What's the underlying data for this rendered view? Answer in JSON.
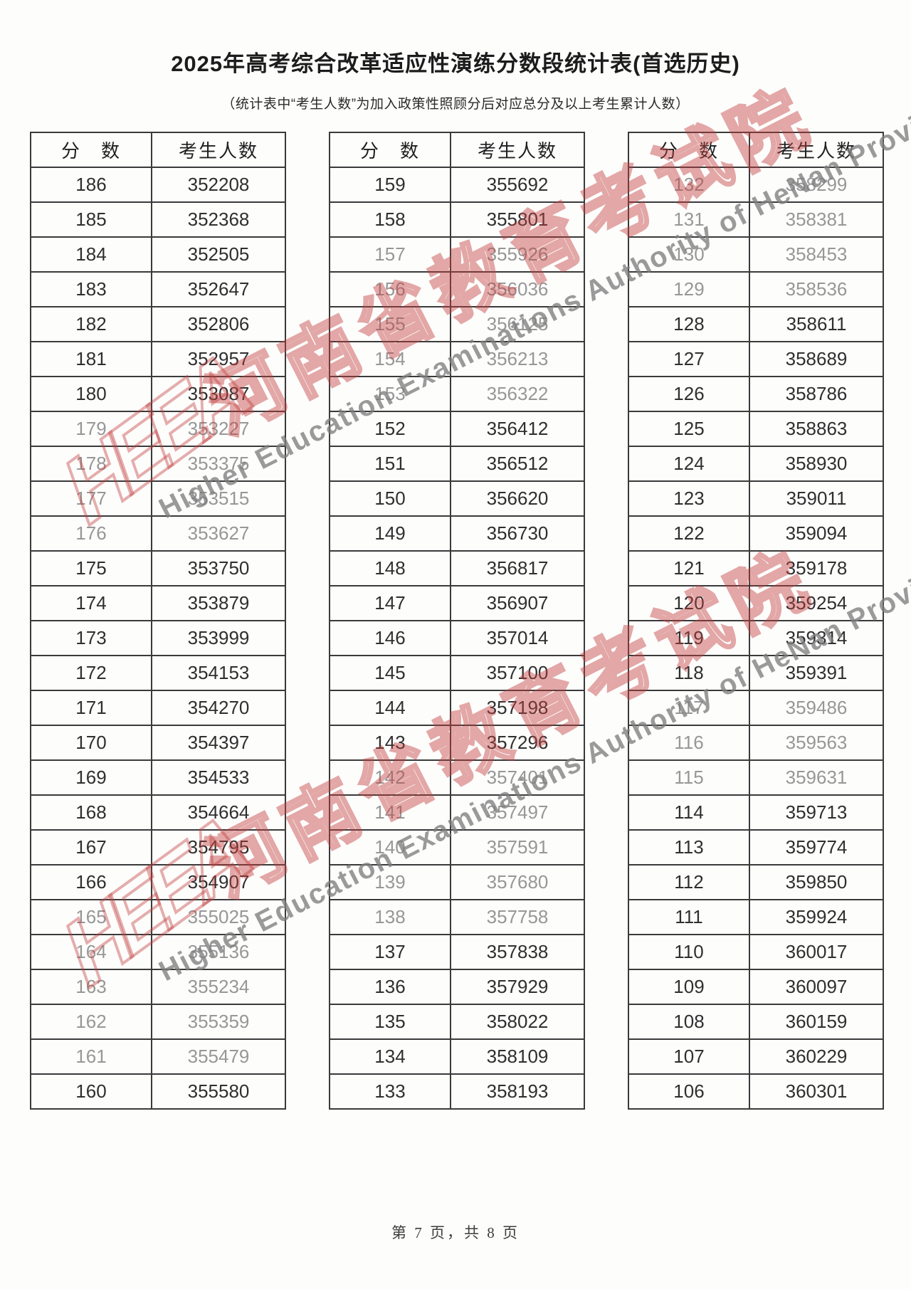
{
  "page": {
    "title": "2025年高考综合改革适应性演练分数段统计表(首选历史)",
    "subtitle": "（统计表中“考生人数”为加入政策性照顾分后对应总分及以上考生累计人数）",
    "footer": "第 7 页，共 8 页"
  },
  "table_headers": {
    "score": "分　数",
    "count": "考生人数"
  },
  "tables": [
    {
      "rows": [
        {
          "score": "186",
          "count": "352208",
          "dim": false
        },
        {
          "score": "185",
          "count": "352368",
          "dim": false
        },
        {
          "score": "184",
          "count": "352505",
          "dim": false
        },
        {
          "score": "183",
          "count": "352647",
          "dim": false
        },
        {
          "score": "182",
          "count": "352806",
          "dim": false
        },
        {
          "score": "181",
          "count": "352957",
          "dim": false
        },
        {
          "score": "180",
          "count": "353087",
          "dim": false
        },
        {
          "score": "179",
          "count": "353227",
          "dim": true
        },
        {
          "score": "178",
          "count": "353375",
          "dim": true
        },
        {
          "score": "177",
          "count": "353515",
          "dim": true
        },
        {
          "score": "176",
          "count": "353627",
          "dim": true
        },
        {
          "score": "175",
          "count": "353750",
          "dim": false
        },
        {
          "score": "174",
          "count": "353879",
          "dim": false
        },
        {
          "score": "173",
          "count": "353999",
          "dim": false
        },
        {
          "score": "172",
          "count": "354153",
          "dim": false
        },
        {
          "score": "171",
          "count": "354270",
          "dim": false
        },
        {
          "score": "170",
          "count": "354397",
          "dim": false
        },
        {
          "score": "169",
          "count": "354533",
          "dim": false
        },
        {
          "score": "168",
          "count": "354664",
          "dim": false
        },
        {
          "score": "167",
          "count": "354795",
          "dim": false
        },
        {
          "score": "166",
          "count": "354907",
          "dim": false
        },
        {
          "score": "165",
          "count": "355025",
          "dim": true
        },
        {
          "score": "164",
          "count": "355136",
          "dim": true
        },
        {
          "score": "163",
          "count": "355234",
          "dim": true
        },
        {
          "score": "162",
          "count": "355359",
          "dim": true
        },
        {
          "score": "161",
          "count": "355479",
          "dim": true
        },
        {
          "score": "160",
          "count": "355580",
          "dim": false
        }
      ]
    },
    {
      "rows": [
        {
          "score": "159",
          "count": "355692",
          "dim": false
        },
        {
          "score": "158",
          "count": "355801",
          "dim": false
        },
        {
          "score": "157",
          "count": "355926",
          "dim": true
        },
        {
          "score": "156",
          "count": "356036",
          "dim": true
        },
        {
          "score": "155",
          "count": "356125",
          "dim": true
        },
        {
          "score": "154",
          "count": "356213",
          "dim": true
        },
        {
          "score": "153",
          "count": "356322",
          "dim": true
        },
        {
          "score": "152",
          "count": "356412",
          "dim": false
        },
        {
          "score": "151",
          "count": "356512",
          "dim": false
        },
        {
          "score": "150",
          "count": "356620",
          "dim": false
        },
        {
          "score": "149",
          "count": "356730",
          "dim": false
        },
        {
          "score": "148",
          "count": "356817",
          "dim": false
        },
        {
          "score": "147",
          "count": "356907",
          "dim": false
        },
        {
          "score": "146",
          "count": "357014",
          "dim": false
        },
        {
          "score": "145",
          "count": "357100",
          "dim": false
        },
        {
          "score": "144",
          "count": "357198",
          "dim": false
        },
        {
          "score": "143",
          "count": "357296",
          "dim": false
        },
        {
          "score": "142",
          "count": "357401",
          "dim": true
        },
        {
          "score": "141",
          "count": "357497",
          "dim": true
        },
        {
          "score": "140",
          "count": "357591",
          "dim": true
        },
        {
          "score": "139",
          "count": "357680",
          "dim": true
        },
        {
          "score": "138",
          "count": "357758",
          "dim": true
        },
        {
          "score": "137",
          "count": "357838",
          "dim": false
        },
        {
          "score": "136",
          "count": "357929",
          "dim": false
        },
        {
          "score": "135",
          "count": "358022",
          "dim": false
        },
        {
          "score": "134",
          "count": "358109",
          "dim": false
        },
        {
          "score": "133",
          "count": "358193",
          "dim": false
        }
      ]
    },
    {
      "rows": [
        {
          "score": "132",
          "count": "358299",
          "dim": true
        },
        {
          "score": "131",
          "count": "358381",
          "dim": true
        },
        {
          "score": "130",
          "count": "358453",
          "dim": true
        },
        {
          "score": "129",
          "count": "358536",
          "dim": true
        },
        {
          "score": "128",
          "count": "358611",
          "dim": false
        },
        {
          "score": "127",
          "count": "358689",
          "dim": false
        },
        {
          "score": "126",
          "count": "358786",
          "dim": false
        },
        {
          "score": "125",
          "count": "358863",
          "dim": false
        },
        {
          "score": "124",
          "count": "358930",
          "dim": false
        },
        {
          "score": "123",
          "count": "359011",
          "dim": false
        },
        {
          "score": "122",
          "count": "359094",
          "dim": false
        },
        {
          "score": "121",
          "count": "359178",
          "dim": false
        },
        {
          "score": "120",
          "count": "359254",
          "dim": false
        },
        {
          "score": "119",
          "count": "359314",
          "dim": false
        },
        {
          "score": "118",
          "count": "359391",
          "dim": false
        },
        {
          "score": "117",
          "count": "359486",
          "dim": true
        },
        {
          "score": "116",
          "count": "359563",
          "dim": true
        },
        {
          "score": "115",
          "count": "359631",
          "dim": true
        },
        {
          "score": "114",
          "count": "359713",
          "dim": false
        },
        {
          "score": "113",
          "count": "359774",
          "dim": false
        },
        {
          "score": "112",
          "count": "359850",
          "dim": false
        },
        {
          "score": "111",
          "count": "359924",
          "dim": false
        },
        {
          "score": "110",
          "count": "360017",
          "dim": false
        },
        {
          "score": "109",
          "count": "360097",
          "dim": false
        },
        {
          "score": "108",
          "count": "360159",
          "dim": false
        },
        {
          "score": "107",
          "count": "360229",
          "dim": false
        },
        {
          "score": "106",
          "count": "360301",
          "dim": false
        }
      ]
    }
  ],
  "watermark": {
    "logo": "HEEA",
    "cn": "河南省教育考试院",
    "en": "Higher Education Examinations Authority of HeNan Province",
    "red": "#c03e3e",
    "gray": "#7d7d7d"
  }
}
